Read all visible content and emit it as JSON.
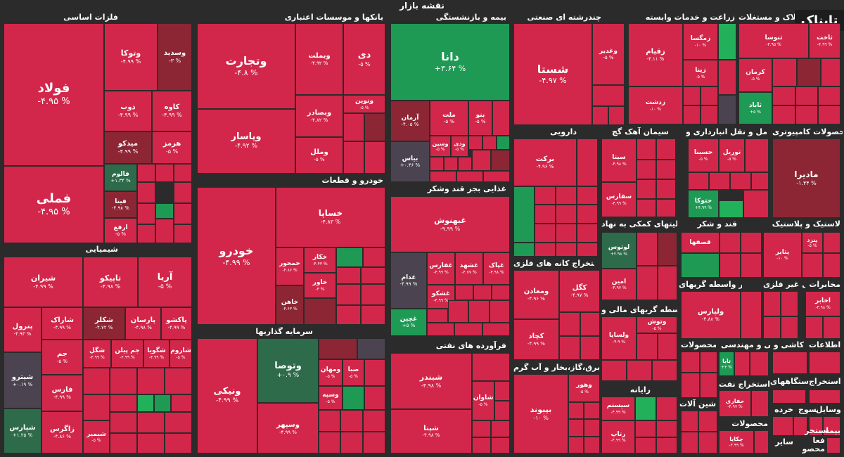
{
  "title": "نقشه بازار",
  "logo": "تابناک",
  "sectors": {
    "s1": "فلزات اساسی",
    "s2": "بانکها و موسسات اعتباری",
    "s3": "بیمه و بازنشستگی",
    "s4": "چندرشته ای صنعتی",
    "s5": "زراعت و خدمات وابسته",
    "s6": "انبوه سازی املاک و مستغلات",
    "s7": "شیمیایی",
    "s8": "خودرو و قطعات",
    "s9": "غذایی بجز قند وشکر",
    "s10": "دارویی",
    "s11": "سیمان آهک گچ",
    "s12": "حمل و نقل انبارداری و",
    "s13": "محصولات کامپیوتری",
    "s14": "فعالیتهای کمکی به نهاد",
    "s15": "قند و شکر",
    "s16": "لاستیک و پلاستیک",
    "s17": "استخراج کانه های فلزی",
    "s18": "واسطه گریهای مالی و",
    "s19": "سایر واسطه گریهای",
    "s20": "کانی غیر فلزی",
    "s21": "مخابرات",
    "s22": "سرمایه گذاریها",
    "s23": "فرآورده های نفتی",
    "s24": "عرضه برق،گاز،بخار و آب گرم",
    "s25": "رایانه",
    "s26": "محصولات",
    "s27": "فنی و مهندسی",
    "s28": "کاشی و",
    "s29": "اطلاعات",
    "s30": "استخراج نفت",
    "s31": "ساخت دستگاههای",
    "s32": "استخراج",
    "s33": "ماشین آلات",
    "s34": "خرده",
    "s35": "وسایل",
    "s36": "منسوج",
    "s37": "محصولات",
    "s38": "سایر",
    "s39": "استخر",
    "s40": "محصو",
    "s41": "فعا",
    "s42": "بیمه"
  },
  "tiles": {
    "foolad": {
      "name": "فولاد",
      "pct": "-۴.۹۵ %"
    },
    "fameli": {
      "name": "فملی",
      "pct": "-۴.۹۵ %"
    },
    "vetoka": {
      "name": "وتوکا",
      "pct": "-۴.۹۹ %"
    },
    "vesadid": {
      "name": "وسدید",
      "pct": "-۳ %"
    },
    "zob": {
      "name": "ذوب",
      "pct": "-۴.۹۹ %"
    },
    "kaveh": {
      "name": "کاوه",
      "pct": "-۴.۹۹ %"
    },
    "midco": {
      "name": "میدکو",
      "pct": "-۴.۹۹ %"
    },
    "hormoz": {
      "name": "هرمز",
      "pct": "-۵ %"
    },
    "falum": {
      "name": "فالوم",
      "pct": "+۱.۳۴ %"
    },
    "fetoka": {
      "name": "فیتا",
      "pct": "-۴.۹۸ %"
    },
    "arfa": {
      "name": "ارفع",
      "pct": "-۵ %"
    },
    "vetejarat": {
      "name": "وتجارت",
      "pct": "-۴.۸ %"
    },
    "vebemelat": {
      "name": "وبملت",
      "pct": "-۴.۹۲ %"
    },
    "di": {
      "name": "دی",
      "pct": "-۵ %"
    },
    "vebsader": {
      "name": "وبصادر",
      "pct": "-۴.۸۲ %"
    },
    "vepasar": {
      "name": "وپاسار",
      "pct": "-۴.۹۲ %"
    },
    "vemelal": {
      "name": "وملل",
      "pct": "-۵ %"
    },
    "vanovin": {
      "name": "ونوین",
      "pct": "-۵ %"
    },
    "dana": {
      "name": "دانا",
      "pct": "+۳.۶۴ %"
    },
    "arman": {
      "name": "آرمان",
      "pct": "-۴.۰۵ %"
    },
    "melat": {
      "name": "ملت",
      "pct": "-۵ %"
    },
    "bno": {
      "name": "بنو",
      "pct": "-۵ %"
    },
    "vesin": {
      "name": "وسین",
      "pct": "-۵ %"
    },
    "vedi": {
      "name": "ودی",
      "pct": "-۵ %"
    },
    "bimas": {
      "name": "بیاس",
      "pct": "+۰.۴۶ %"
    },
    "shasta": {
      "name": "شستا",
      "pct": "-۴.۹۷ %"
    },
    "vaghadir": {
      "name": "وغدیر",
      "pct": "-۵ %"
    },
    "zagham": {
      "name": "زقیام",
      "pct": "-۴.۱۱ %"
    },
    "zamgesa": {
      "name": "زمگسا",
      "pct": "-۱۰ %"
    },
    "zina": {
      "name": "زینا",
      "pct": "-۵ %"
    },
    "zedasht": {
      "name": "زدشت",
      "pct": "-۱۰ %"
    },
    "thnusa": {
      "name": "ثنوسا",
      "pct": "-۴.۹۵ %"
    },
    "thakht": {
      "name": "ثاخت",
      "pct": "-۴.۹۹ %"
    },
    "kerman": {
      "name": "کرمان",
      "pct": "-۵ %"
    },
    "thabad": {
      "name": "ثاباد",
      "pct": "+۵ %"
    },
    "shiran": {
      "name": "شیران",
      "pct": "-۴.۹۹ %"
    },
    "tapico": {
      "name": "تاپیکو",
      "pct": "-۴.۹۸ %"
    },
    "arya": {
      "name": "آریا",
      "pct": "-۵ %"
    },
    "petrol": {
      "name": "پترول",
      "pct": "-۴.۹۳ %"
    },
    "sharak": {
      "name": "شاراک",
      "pct": "-۴.۹۹ %"
    },
    "shekar": {
      "name": "شکلر",
      "pct": "-۴.۷۲ %"
    },
    "parsan": {
      "name": "پارسان",
      "pct": "-۴.۹۸ %"
    },
    "pakhsh": {
      "name": "پاکشو",
      "pct": "-۴.۹۹ %"
    },
    "jam": {
      "name": "جم",
      "pct": "-۵ %"
    },
    "shegol": {
      "name": "شگل",
      "pct": "-۴.۹۹ %"
    },
    "jampilan": {
      "name": "جم پیلن",
      "pct": "-۴.۹۹ %"
    },
    "shegooya": {
      "name": "شگویا",
      "pct": "-۴.۹۹ %"
    },
    "sharoom": {
      "name": "شاروم",
      "pct": "-۵ %"
    },
    "shitro": {
      "name": "شیترو",
      "pct": "+۰.۱۹ %"
    },
    "fars": {
      "name": "فارس",
      "pct": "-۴.۹۹ %"
    },
    "shepars": {
      "name": "شپارس",
      "pct": "+۱.۲۵ %"
    },
    "zagros": {
      "name": "زاگرس",
      "pct": "-۴.۸۶ %"
    },
    "shisherif": {
      "name": "شیمیر",
      "pct": "-۵ %"
    },
    "khodro": {
      "name": "خودرو",
      "pct": "-۴.۹۹ %"
    },
    "khsapa": {
      "name": "خساپا",
      "pct": "-۴.۸۳ %"
    },
    "khekar": {
      "name": "خکار",
      "pct": "-۴.۴۳ %"
    },
    "khamhur": {
      "name": "خمحور",
      "pct": "-۴.۸۶ %"
    },
    "khaver": {
      "name": "خاور",
      "pct": "-۳ %"
    },
    "khahan": {
      "name": "خاهن",
      "pct": "-۴.۶۳ %"
    },
    "ghebehnoosh": {
      "name": "غبهنوش",
      "pct": "-۹.۹۹ %"
    },
    "ghazar": {
      "name": "غدام",
      "pct": "-۴.۹۹ %"
    },
    "ghfars": {
      "name": "غفارس",
      "pct": "-۴.۹۹ %"
    },
    "ghshahd": {
      "name": "غشهد",
      "pct": "-۴.۷۷ %"
    },
    "ghpak": {
      "name": "غپاک",
      "pct": "-۴.۹۸ %"
    },
    "ghshoko": {
      "name": "غشکو",
      "pct": "-۴.۹۹ %"
    },
    "ghchin": {
      "name": "غچین",
      "pct": "+۵ %"
    },
    "barakat": {
      "name": "برکت",
      "pct": "-۴.۹۶ %"
    },
    "sita": {
      "name": "سیتا",
      "pct": "-۴.۹۸ %"
    },
    "safars": {
      "name": "سفارس",
      "pct": "-۴.۹۹ %"
    },
    "hasina": {
      "name": "حسینا",
      "pct": "-۵ %"
    },
    "tooril": {
      "name": "توریل",
      "pct": "-۵ %"
    },
    "hetoka": {
      "name": "حتوکا",
      "pct": "+۴.۹۹ %"
    },
    "madira": {
      "name": "مادیرا",
      "pct": "-۱.۴۴ %"
    },
    "lotus": {
      "name": "لوتوس",
      "pct": "+۲.۹۸ %"
    },
    "ghasafe": {
      "name": "قصفها",
      "pct": "-۵ %"
    },
    "petayar": {
      "name": "پتایر",
      "pct": "-۱۰ %"
    },
    "pinzd": {
      "name": "پنزد",
      "pct": "-۵ %"
    },
    "kegol": {
      "name": "کگل",
      "pct": "-۴.۹۷ %"
    },
    "vemaadan": {
      "name": "ومعادن",
      "pct": "-۴.۹۶ %"
    },
    "kechad": {
      "name": "کچاد",
      "pct": "-۴.۹۹ %"
    },
    "amin": {
      "name": "امین",
      "pct": "-۴.۹۷ %"
    },
    "vetoosh": {
      "name": "وتوش",
      "pct": "-۵ %"
    },
    "vesapa": {
      "name": "ولساپا",
      "pct": "-۴.۹ %"
    },
    "vepars": {
      "name": "ولپارس",
      "pct": "-۴.۸۸ %"
    },
    "akhabar": {
      "name": "اخابر",
      "pct": "-۴.۹۸ %"
    },
    "vetosa": {
      "name": "وتوصا",
      "pct": "+۰.۹ %"
    },
    "vesbahr": {
      "name": "وسپهر",
      "pct": "-۴.۹۹ %"
    },
    "vanik": {
      "name": "ونیکی",
      "pct": "-۴.۹۹ %"
    },
    "sebah": {
      "name": "صبا",
      "pct": "-۵ %"
    },
    "vemahan": {
      "name": "ومهان",
      "pct": "-۵ %"
    },
    "vesepeh": {
      "name": "وسپه",
      "pct": "-۵ %"
    },
    "shebandar": {
      "name": "شبندر",
      "pct": "-۴.۹۸ %"
    },
    "shepna": {
      "name": "شپنا",
      "pct": "-۴.۹۸ %"
    },
    "shavan": {
      "name": "شاوان",
      "pct": "-۵ %"
    },
    "bipand": {
      "name": "بپیوند",
      "pct": "-۱۰ %"
    },
    "bahir": {
      "name": "وهور",
      "pct": "-۵ %"
    },
    "sistam": {
      "name": "سیستم",
      "pct": "-۴.۹۹ %"
    },
    "ratap": {
      "name": "رتاپ",
      "pct": "-۴.۹۹ %"
    },
    "taba": {
      "name": "تابا",
      "pct": "+۳ %"
    },
    "hefari": {
      "name": "حفاری",
      "pct": "-۴.۹۷ %"
    },
    "chekapa": {
      "name": "چکاپا",
      "pct": "-۴.۹۹ %"
    }
  }
}
